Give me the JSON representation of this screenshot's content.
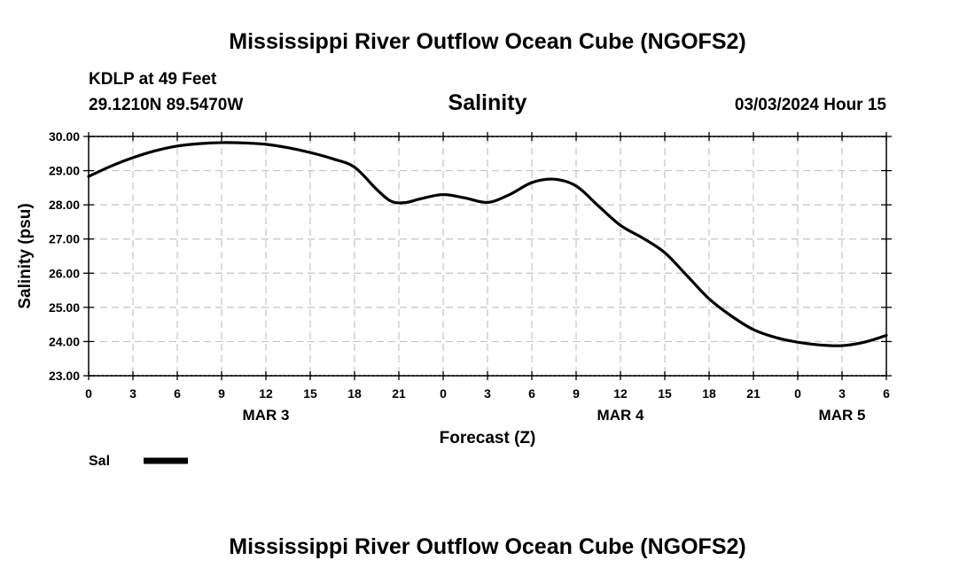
{
  "chart_data": {
    "type": "line",
    "title": "Mississippi River Outflow Ocean Cube (NGOFS2)",
    "footer_title": "Mississippi River Outflow Ocean Cube (NGOFS2)",
    "station": "KDLP at 49 Feet",
    "coordinates": "29.1210N  89.5470W",
    "subtitle": "Salinity",
    "timestamp": "03/03/2024 Hour 15",
    "xlabel": "Forecast (Z)",
    "ylabel": "Salinity (psu)",
    "xlim": [
      0,
      54
    ],
    "ylim": [
      23,
      30
    ],
    "x_ticks": [
      0,
      3,
      6,
      9,
      12,
      15,
      18,
      21,
      24,
      27,
      30,
      33,
      36,
      39,
      42,
      45,
      48,
      51,
      54
    ],
    "x_tick_labels": [
      "0",
      "3",
      "6",
      "9",
      "12",
      "15",
      "18",
      "21",
      "0",
      "3",
      "6",
      "9",
      "12",
      "15",
      "18",
      "21",
      "0",
      "3",
      "6"
    ],
    "y_ticks": [
      23,
      24,
      25,
      26,
      27,
      28,
      29,
      30
    ],
    "y_tick_labels": [
      "23.00",
      "24.00",
      "25.00",
      "26.00",
      "27.00",
      "28.00",
      "29.00",
      "30.00"
    ],
    "date_labels": [
      {
        "x": 12,
        "label": "MAR 3"
      },
      {
        "x": 36,
        "label": "MAR 4"
      },
      {
        "x": 51,
        "label": "MAR 5"
      }
    ],
    "grid": true,
    "series": [
      {
        "name": "Sal",
        "color": "#000000",
        "x": [
          0,
          1.5,
          3,
          4.5,
          6,
          7.5,
          9,
          10.5,
          12,
          13.5,
          15,
          16.5,
          18,
          19.5,
          20.5,
          21.5,
          22.5,
          24,
          25.5,
          27,
          28.5,
          30,
          31.5,
          33,
          34.5,
          36,
          37.5,
          39,
          40.5,
          42,
          43.5,
          45,
          46.5,
          48,
          49.5,
          51,
          52.5,
          54
        ],
        "values": [
          28.83,
          29.13,
          29.38,
          29.58,
          29.72,
          29.79,
          29.82,
          29.81,
          29.77,
          29.67,
          29.53,
          29.35,
          29.1,
          28.45,
          28.1,
          28.07,
          28.18,
          28.3,
          28.2,
          28.07,
          28.3,
          28.65,
          28.75,
          28.55,
          27.97,
          27.4,
          27.03,
          26.6,
          25.93,
          25.25,
          24.75,
          24.35,
          24.12,
          23.98,
          23.9,
          23.88,
          23.98,
          24.18
        ]
      }
    ]
  }
}
